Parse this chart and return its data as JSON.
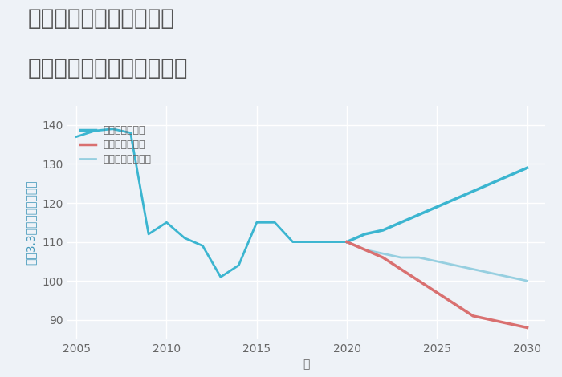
{
  "title_line1": "大阪府柏原市国分本町の",
  "title_line2": "中古マンションの価格推移",
  "xlabel": "年",
  "ylabel": "坪（3.3㎡）単価（万円）",
  "background_color": "#eef2f7",
  "plot_background": "#eef2f7",
  "ylim": [
    85,
    145
  ],
  "xlim": [
    2004.5,
    2031
  ],
  "yticks": [
    90,
    100,
    110,
    120,
    130,
    140
  ],
  "xticks": [
    2005,
    2010,
    2015,
    2020,
    2025,
    2030
  ],
  "historical": {
    "years": [
      2005,
      2006,
      2007,
      2008,
      2009,
      2010,
      2011,
      2012,
      2013,
      2014,
      2015,
      2016,
      2017,
      2018,
      2019,
      2020
    ],
    "values": [
      137,
      138.5,
      139,
      138,
      112,
      115,
      111,
      109,
      101,
      104,
      115,
      115,
      110,
      110,
      110,
      110
    ]
  },
  "good_scenario": {
    "years": [
      2020,
      2021,
      2022,
      2023,
      2024,
      2025,
      2026,
      2027,
      2028,
      2029,
      2030
    ],
    "values": [
      110,
      112,
      113,
      115,
      117,
      119,
      121,
      123,
      125,
      127,
      129
    ],
    "color": "#3bb5d0",
    "label": "グッドシナリオ",
    "linewidth": 2.5
  },
  "bad_scenario": {
    "years": [
      2020,
      2021,
      2022,
      2023,
      2024,
      2025,
      2026,
      2027,
      2028,
      2029,
      2030
    ],
    "values": [
      110,
      108,
      106,
      103,
      100,
      97,
      94,
      91,
      90,
      89,
      88
    ],
    "color": "#d97070",
    "label": "バッドシナリオ",
    "linewidth": 2.5
  },
  "normal_scenario": {
    "years": [
      2020,
      2021,
      2022,
      2023,
      2024,
      2025,
      2026,
      2027,
      2028,
      2029,
      2030
    ],
    "values": [
      110,
      108,
      107,
      106,
      106,
      105,
      104,
      103,
      102,
      101,
      100
    ],
    "color": "#96cfe0",
    "label": "ノーマルシナリオ",
    "linewidth": 2.0
  },
  "historical_color": "#3bb5d0",
  "historical_linewidth": 2.0,
  "title_fontsize": 20,
  "axis_fontsize": 10,
  "tick_fontsize": 10,
  "legend_fontsize": 9,
  "title_color": "#555555",
  "tick_color": "#666666",
  "grid_color": "#ffffff",
  "ylabel_color": "#4499bb"
}
